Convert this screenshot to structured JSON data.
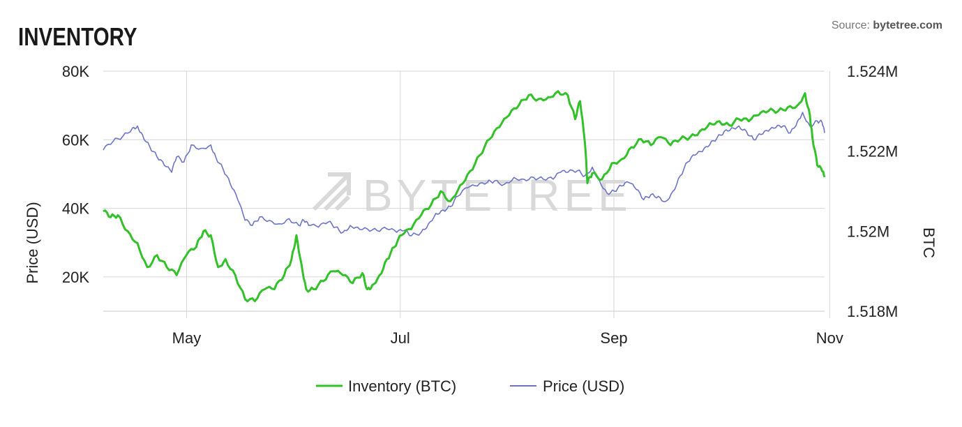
{
  "header": {
    "title": "INVENTORY"
  },
  "source": {
    "label": "Source:",
    "site": "bytetree.com"
  },
  "watermark": "BYTETREE",
  "chart_data": {
    "type": "line",
    "x_ticks": [
      "May",
      "Jul",
      "Sep",
      "Nov"
    ],
    "y_left": {
      "label": "Price (USD)",
      "ticks": [
        "80K",
        "60K",
        "40K",
        "20K"
      ],
      "range": [
        10000,
        80000
      ]
    },
    "y_right": {
      "label": "BTC",
      "ticks": [
        "1.524M",
        "1.522M",
        "1.52M",
        "1.518M"
      ],
      "range": [
        1518000,
        1524000
      ]
    },
    "grid": true,
    "legend": "bottom-center",
    "series": [
      {
        "name": "Inventory (BTC)",
        "axis": "right",
        "color": "#33c12a",
        "points": [
          [
            0.0,
            1520500
          ],
          [
            1.5,
            1520350
          ],
          [
            3,
            1520400
          ],
          [
            5,
            1520000
          ],
          [
            7,
            1519700
          ],
          [
            9,
            1519100
          ],
          [
            11,
            1519400
          ],
          [
            13,
            1519100
          ],
          [
            15,
            1518900
          ],
          [
            17,
            1519400
          ],
          [
            19,
            1519600
          ],
          [
            20.5,
            1520000
          ],
          [
            22,
            1519900
          ],
          [
            23.5,
            1519100
          ],
          [
            25,
            1519300
          ],
          [
            27,
            1518900
          ],
          [
            29,
            1518300
          ],
          [
            31,
            1518250
          ],
          [
            33,
            1518550
          ],
          [
            35,
            1518550
          ],
          [
            37,
            1518900
          ],
          [
            38.5,
            1519300
          ],
          [
            39.5,
            1519900
          ],
          [
            40.5,
            1519200
          ],
          [
            41.5,
            1518550
          ],
          [
            43,
            1518550
          ],
          [
            45,
            1518750
          ],
          [
            47,
            1519000
          ],
          [
            49,
            1518900
          ],
          [
            51,
            1518700
          ],
          [
            53,
            1518950
          ],
          [
            54,
            1518550
          ],
          [
            55,
            1518650
          ],
          [
            56.5,
            1518900
          ],
          [
            58,
            1519300
          ],
          [
            59.5,
            1519600
          ],
          [
            61,
            1519900
          ],
          [
            63,
            1520050
          ],
          [
            65,
            1520400
          ],
          [
            67,
            1520650
          ],
          [
            69,
            1521000
          ],
          [
            71,
            1520750
          ],
          [
            73,
            1521150
          ],
          [
            75,
            1521500
          ],
          [
            77,
            1521900
          ],
          [
            79,
            1522300
          ],
          [
            81,
            1522600
          ],
          [
            83,
            1522900
          ],
          [
            85,
            1523150
          ],
          [
            87,
            1523400
          ],
          [
            89,
            1523300
          ],
          [
            91,
            1523350
          ],
          [
            93,
            1523500
          ],
          [
            95,
            1523400
          ],
          [
            96.5,
            1522800
          ],
          [
            97.5,
            1523250
          ],
          [
            98.5,
            1522200
          ],
          [
            99,
            1521200
          ],
          [
            100,
            1521450
          ],
          [
            102,
            1521300
          ],
          [
            104,
            1521700
          ],
          [
            106,
            1521800
          ],
          [
            108,
            1522100
          ],
          [
            110,
            1522300
          ],
          [
            112,
            1522150
          ],
          [
            114,
            1522350
          ],
          [
            116,
            1522150
          ],
          [
            118,
            1522300
          ],
          [
            120,
            1522350
          ],
          [
            122,
            1522500
          ],
          [
            124,
            1522700
          ],
          [
            126,
            1522750
          ],
          [
            128,
            1522650
          ],
          [
            130,
            1522800
          ],
          [
            132,
            1522750
          ],
          [
            134,
            1522900
          ],
          [
            136,
            1523000
          ],
          [
            138,
            1523000
          ],
          [
            140,
            1523100
          ],
          [
            142,
            1523150
          ],
          [
            143.5,
            1523450
          ],
          [
            144.5,
            1522900
          ],
          [
            145,
            1522350
          ],
          [
            146,
            1521650
          ],
          [
            147,
            1521500
          ],
          [
            147.5,
            1521350
          ]
        ]
      },
      {
        "name": "Price (USD)",
        "axis": "left",
        "color": "#6b74c9",
        "points": [
          [
            0.0,
            57000
          ],
          [
            2,
            59500
          ],
          [
            4,
            61000
          ],
          [
            6,
            63500
          ],
          [
            7,
            64000
          ],
          [
            8,
            61500
          ],
          [
            9.5,
            58000
          ],
          [
            11,
            55000
          ],
          [
            12.5,
            52500
          ],
          [
            14,
            50500
          ],
          [
            15,
            55000
          ],
          [
            16.5,
            53500
          ],
          [
            18,
            58500
          ],
          [
            20,
            57500
          ],
          [
            22,
            58500
          ],
          [
            23,
            55000
          ],
          [
            24.5,
            51500
          ],
          [
            26,
            47000
          ],
          [
            27.5,
            42500
          ],
          [
            29,
            36500
          ],
          [
            30.5,
            35000
          ],
          [
            32,
            37500
          ],
          [
            34,
            36500
          ],
          [
            36,
            35500
          ],
          [
            38,
            37000
          ],
          [
            40,
            35000
          ],
          [
            41,
            36500
          ],
          [
            42,
            35000
          ],
          [
            44,
            34500
          ],
          [
            46,
            36000
          ],
          [
            47.5,
            34500
          ],
          [
            49,
            33000
          ],
          [
            50.5,
            35000
          ],
          [
            52,
            34500
          ],
          [
            54,
            34000
          ],
          [
            56,
            33500
          ],
          [
            58,
            34000
          ],
          [
            60,
            33000
          ],
          [
            61.5,
            33500
          ],
          [
            63,
            32000
          ],
          [
            65,
            33000
          ],
          [
            66.5,
            35500
          ],
          [
            68,
            38500
          ],
          [
            69.5,
            39500
          ],
          [
            71,
            40500
          ],
          [
            72.5,
            43500
          ],
          [
            74.5,
            46000
          ],
          [
            76.5,
            46500
          ],
          [
            78.5,
            47500
          ],
          [
            80,
            48000
          ],
          [
            82,
            47000
          ],
          [
            84,
            49000
          ],
          [
            86,
            48500
          ],
          [
            88,
            49000
          ],
          [
            90,
            48500
          ],
          [
            92,
            48500
          ],
          [
            93.5,
            50500
          ],
          [
            95,
            50500
          ],
          [
            97,
            51000
          ],
          [
            98.5,
            49500
          ],
          [
            100,
            52000
          ],
          [
            101.5,
            48000
          ],
          [
            103,
            44500
          ],
          [
            104.5,
            45000
          ],
          [
            106,
            46500
          ],
          [
            107.5,
            47500
          ],
          [
            109,
            45500
          ],
          [
            110.5,
            42500
          ],
          [
            112,
            44000
          ],
          [
            113.5,
            43500
          ],
          [
            115,
            42000
          ],
          [
            116.5,
            45000
          ],
          [
            118,
            49500
          ],
          [
            119.5,
            53500
          ],
          [
            121,
            55500
          ],
          [
            122.5,
            56500
          ],
          [
            124,
            58500
          ],
          [
            125.5,
            60500
          ],
          [
            127,
            62500
          ],
          [
            128.5,
            63500
          ],
          [
            130,
            64000
          ],
          [
            131.5,
            62500
          ],
          [
            133,
            60000
          ],
          [
            134.5,
            61500
          ],
          [
            136,
            62500
          ],
          [
            137.5,
            63500
          ],
          [
            139,
            64000
          ],
          [
            140.5,
            62000
          ],
          [
            142,
            65500
          ],
          [
            143,
            68000
          ],
          [
            144.5,
            64000
          ],
          [
            146,
            65500
          ],
          [
            147,
            65000
          ],
          [
            147.5,
            62000
          ]
        ]
      }
    ]
  }
}
